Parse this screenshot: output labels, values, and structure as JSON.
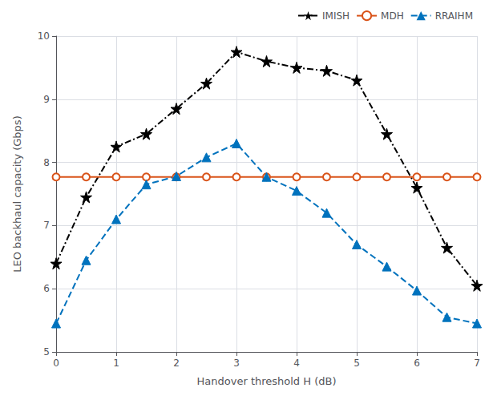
{
  "chart_data": {
    "type": "line",
    "x_label": "Handover threshold H (dB)",
    "y_label": "LEO backhaul capacity (Gbps)",
    "x": [
      0,
      0.5,
      1,
      1.5,
      2,
      2.5,
      3,
      3.5,
      4,
      4.5,
      5,
      5.5,
      6,
      6.5,
      7
    ],
    "series": [
      {
        "name": "IMISH",
        "color": "#000000",
        "marker": "star",
        "line_style": "dashdot",
        "values": [
          6.4,
          7.45,
          8.25,
          8.45,
          8.85,
          9.25,
          9.75,
          9.6,
          9.5,
          9.45,
          9.3,
          8.45,
          7.6,
          6.65,
          6.05
        ]
      },
      {
        "name": "MDH",
        "color": "#d95319",
        "marker": "open_circle",
        "line_style": "solid",
        "values": [
          7.77,
          7.77,
          7.77,
          7.77,
          7.77,
          7.77,
          7.77,
          7.77,
          7.77,
          7.77,
          7.77,
          7.77,
          7.77,
          7.77,
          7.77
        ]
      },
      {
        "name": "RRAIHM",
        "color": "#0072bd",
        "marker": "triangle",
        "line_style": "dashed",
        "values": [
          5.45,
          6.45,
          7.1,
          7.65,
          7.78,
          8.08,
          8.3,
          7.77,
          7.55,
          7.2,
          6.7,
          6.35,
          5.97,
          5.55,
          5.45
        ]
      }
    ],
    "xlim": [
      0,
      7
    ],
    "xticks": [
      0,
      1,
      2,
      3,
      4,
      5,
      6,
      7
    ],
    "ylim": [
      5,
      10
    ],
    "yticks": [
      5,
      6,
      7,
      8,
      9,
      10
    ],
    "grid": true,
    "legend": "upper right"
  }
}
